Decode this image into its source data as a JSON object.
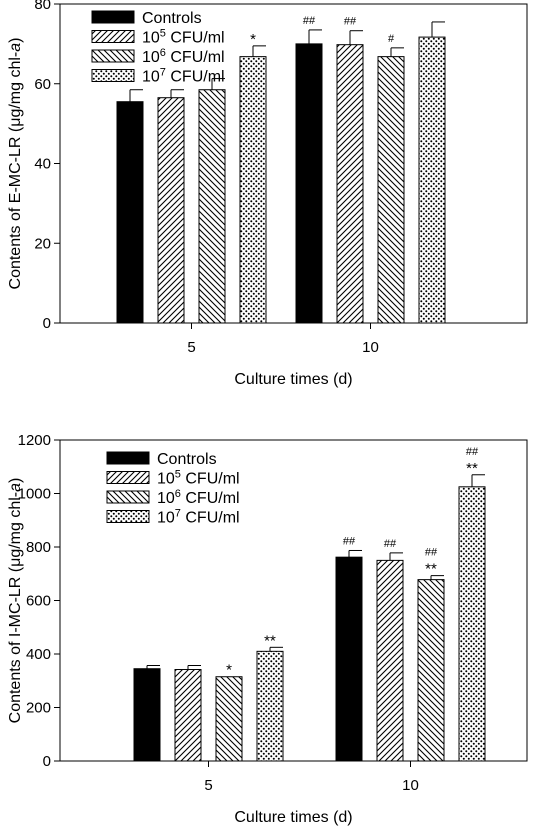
{
  "chart_data": [
    {
      "type": "bar",
      "categories": [
        "5",
        "10"
      ],
      "series": [
        {
          "name": "Controls",
          "name_sup": "",
          "name_rest": "",
          "pattern": "solid",
          "values": [
            55.5,
            70.0
          ],
          "errors": [
            3.0,
            3.5
          ],
          "annotations": [
            "",
            "##"
          ]
        },
        {
          "name": "10",
          "name_sup": "5",
          "name_rest": " CFU/ml",
          "pattern": "diag-right",
          "values": [
            56.5,
            69.8
          ],
          "errors": [
            2.0,
            3.5
          ],
          "annotations": [
            "",
            "##"
          ]
        },
        {
          "name": "10",
          "name_sup": "6",
          "name_rest": " CFU/ml",
          "pattern": "diag-left",
          "values": [
            58.5,
            66.8
          ],
          "errors": [
            2.8,
            2.2
          ],
          "annotations": [
            "",
            "#"
          ]
        },
        {
          "name": "10",
          "name_sup": "7",
          "name_rest": " CFU/ml",
          "pattern": "dots",
          "values": [
            66.8,
            71.7
          ],
          "errors": [
            2.7,
            3.8
          ],
          "annotations": [
            "*",
            ""
          ]
        }
      ],
      "xlabel": "Culture times (d)",
      "ylabel_main": "Contents of E-MC-LR (μg/mg chl-",
      "ylabel_italic": "a",
      "ylabel_end": ")",
      "ylim": [
        0,
        80
      ],
      "yticks": [
        0,
        20,
        40,
        60,
        80
      ],
      "legend_position": "top-left"
    },
    {
      "type": "bar",
      "categories": [
        "5",
        "10"
      ],
      "series": [
        {
          "name": "Controls",
          "name_sup": "",
          "name_rest": "",
          "pattern": "solid",
          "values": [
            345,
            762
          ],
          "errors": [
            12,
            25
          ],
          "annotations": [
            "",
            "##"
          ]
        },
        {
          "name": "10",
          "name_sup": "5",
          "name_rest": " CFU/ml",
          "pattern": "diag-right",
          "values": [
            342,
            750
          ],
          "errors": [
            15,
            28
          ],
          "annotations": [
            "",
            "##"
          ]
        },
        {
          "name": "10",
          "name_sup": "6",
          "name_rest": " CFU/ml",
          "pattern": "diag-left",
          "values": [
            315,
            678
          ],
          "errors": [
            0,
            15
          ],
          "annotations": [
            "*",
            "##\n**"
          ]
        },
        {
          "name": "10",
          "name_sup": "7",
          "name_rest": " CFU/ml",
          "pattern": "dots",
          "values": [
            410,
            1025
          ],
          "errors": [
            15,
            45
          ],
          "annotations": [
            "**",
            "##\n**"
          ]
        }
      ],
      "xlabel": "Culture times (d)",
      "ylabel_main": "Contents of I-MC-LR (μg/mg chl-",
      "ylabel_italic": "a",
      "ylabel_end": ")",
      "ylim": [
        0,
        1200
      ],
      "yticks": [
        0,
        200,
        400,
        600,
        800,
        1000,
        1200
      ],
      "legend_position": "top-left"
    }
  ]
}
